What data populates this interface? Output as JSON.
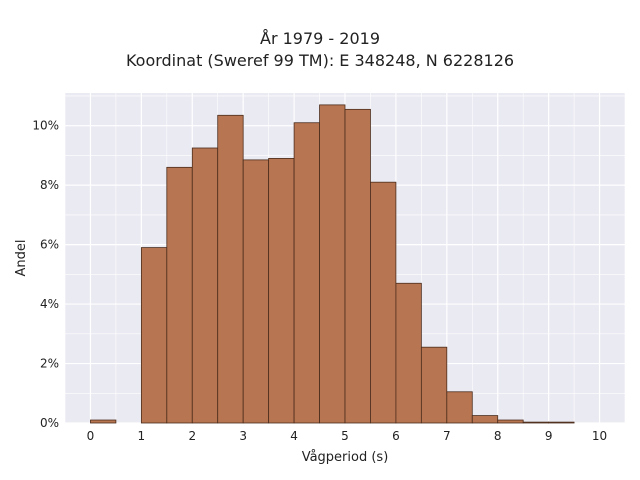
{
  "chart_data": {
    "type": "bar",
    "title": "År 1979 - 2019",
    "subtitle": "Koordinat (Sweref 99 TM): E 348248, N 6228126",
    "xlabel": "Vågperiod (s)",
    "ylabel": "Andel",
    "x_ticks": [
      "0",
      "1",
      "2",
      "3",
      "4",
      "5",
      "6",
      "7",
      "8",
      "9",
      "10"
    ],
    "y_ticks": [
      "0%",
      "2%",
      "4%",
      "6%",
      "8%",
      "10%"
    ],
    "xlim": [
      -0.5,
      10.5
    ],
    "ylim": [
      0,
      11.1
    ],
    "bin_width": 0.5,
    "bins": [
      {
        "x0": 0.0,
        "value": 0.1
      },
      {
        "x0": 0.5,
        "value": 0.0
      },
      {
        "x0": 1.0,
        "value": 5.9
      },
      {
        "x0": 1.5,
        "value": 8.6
      },
      {
        "x0": 2.0,
        "value": 9.25
      },
      {
        "x0": 2.5,
        "value": 10.35
      },
      {
        "x0": 3.0,
        "value": 8.85
      },
      {
        "x0": 3.5,
        "value": 8.9
      },
      {
        "x0": 4.0,
        "value": 10.1
      },
      {
        "x0": 4.5,
        "value": 10.7
      },
      {
        "x0": 5.0,
        "value": 10.55
      },
      {
        "x0": 5.5,
        "value": 8.1
      },
      {
        "x0": 6.0,
        "value": 4.7
      },
      {
        "x0": 6.5,
        "value": 2.55
      },
      {
        "x0": 7.0,
        "value": 1.05
      },
      {
        "x0": 7.5,
        "value": 0.25
      },
      {
        "x0": 8.0,
        "value": 0.1
      },
      {
        "x0": 8.5,
        "value": 0.03
      },
      {
        "x0": 9.0,
        "value": 0.03
      }
    ],
    "grid": true,
    "colors": {
      "bar_fill": "#b87551",
      "bar_stroke": "#4a2c1c",
      "plot_bg": "#eaeaf2",
      "grid": "#ffffff"
    }
  }
}
